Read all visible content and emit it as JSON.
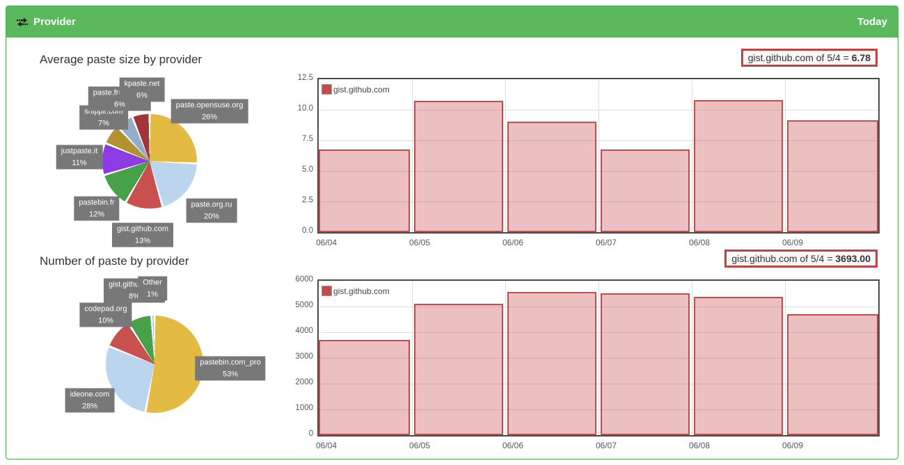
{
  "header": {
    "title": "Provider",
    "period_label": "Today"
  },
  "infoboxes": [
    {
      "text": "gist.github.com of 5/4 = ",
      "value": "6.78"
    },
    {
      "text": "gist.github.com of 5/4 = ",
      "value": "3693.00"
    }
  ],
  "colors": {
    "header_green": "#5cb85c",
    "panel_border": "#4cae4c",
    "bar_border": "#c84b4b",
    "bar_fill": "rgba(200,75,75,0.35)",
    "info_border": "#bf4342",
    "label_box_bg": "#787878"
  },
  "chart_data": [
    {
      "id": "avg-size-pie",
      "type": "pie",
      "title": "Average paste size by provider",
      "labels": [
        "paste.opensuse.org",
        "paste.org.ru",
        "gist.github.com",
        "pastebin.fr",
        "justpaste.it",
        "snipplr.com",
        "paste.frubar.net",
        "kpaste.net"
      ],
      "values": [
        26,
        20,
        13,
        12,
        11,
        7,
        6,
        6
      ],
      "pct_labels": [
        "26%",
        "20%",
        "13%",
        "12%",
        "11%",
        "7%",
        "6%",
        "6%"
      ],
      "colors": [
        "#e4bb42",
        "#bcd5ef",
        "#c8504f",
        "#46a148",
        "#8d3be2",
        "#b1922f",
        "#93aec8",
        "#a23538"
      ]
    },
    {
      "id": "avg-size-bars",
      "type": "bar",
      "legend": [
        "gist.github.com"
      ],
      "categories": [
        "06/04",
        "06/05",
        "06/06",
        "06/07",
        "06/08",
        "06/09"
      ],
      "values": [
        6.78,
        10.75,
        9.05,
        6.78,
        10.8,
        9.15
      ],
      "ylim": [
        0,
        12.5
      ],
      "yticks": [
        "0.0",
        "2.5",
        "5.0",
        "7.5",
        "10.0",
        "12.5"
      ],
      "series_color": "#c84b4b",
      "grid": true,
      "legend_position": "top-left"
    },
    {
      "id": "count-pie",
      "type": "pie",
      "title": "Number of paste by provider",
      "labels": [
        "pastebin.com_pro",
        "ideone.com",
        "codepad.org",
        "gist.github.com",
        "Other"
      ],
      "values": [
        53,
        28,
        10,
        8,
        1
      ],
      "pct_labels": [
        "53%",
        "28%",
        "10%",
        "8%",
        "1%"
      ],
      "colors": [
        "#e4bb42",
        "#bcd5ef",
        "#c8504f",
        "#46a148",
        "#b0b0b0"
      ]
    },
    {
      "id": "count-bars",
      "type": "bar",
      "legend": [
        "gist.github.com"
      ],
      "categories": [
        "06/04",
        "06/05",
        "06/06",
        "06/07",
        "06/08",
        "06/09"
      ],
      "values": [
        3693,
        5110,
        5570,
        5520,
        5370,
        4700
      ],
      "ylim": [
        0,
        6000
      ],
      "yticks": [
        "0",
        "1000",
        "2000",
        "3000",
        "4000",
        "5000",
        "6000"
      ],
      "series_color": "#c84b4b",
      "grid": true,
      "legend_position": "top-left"
    }
  ]
}
